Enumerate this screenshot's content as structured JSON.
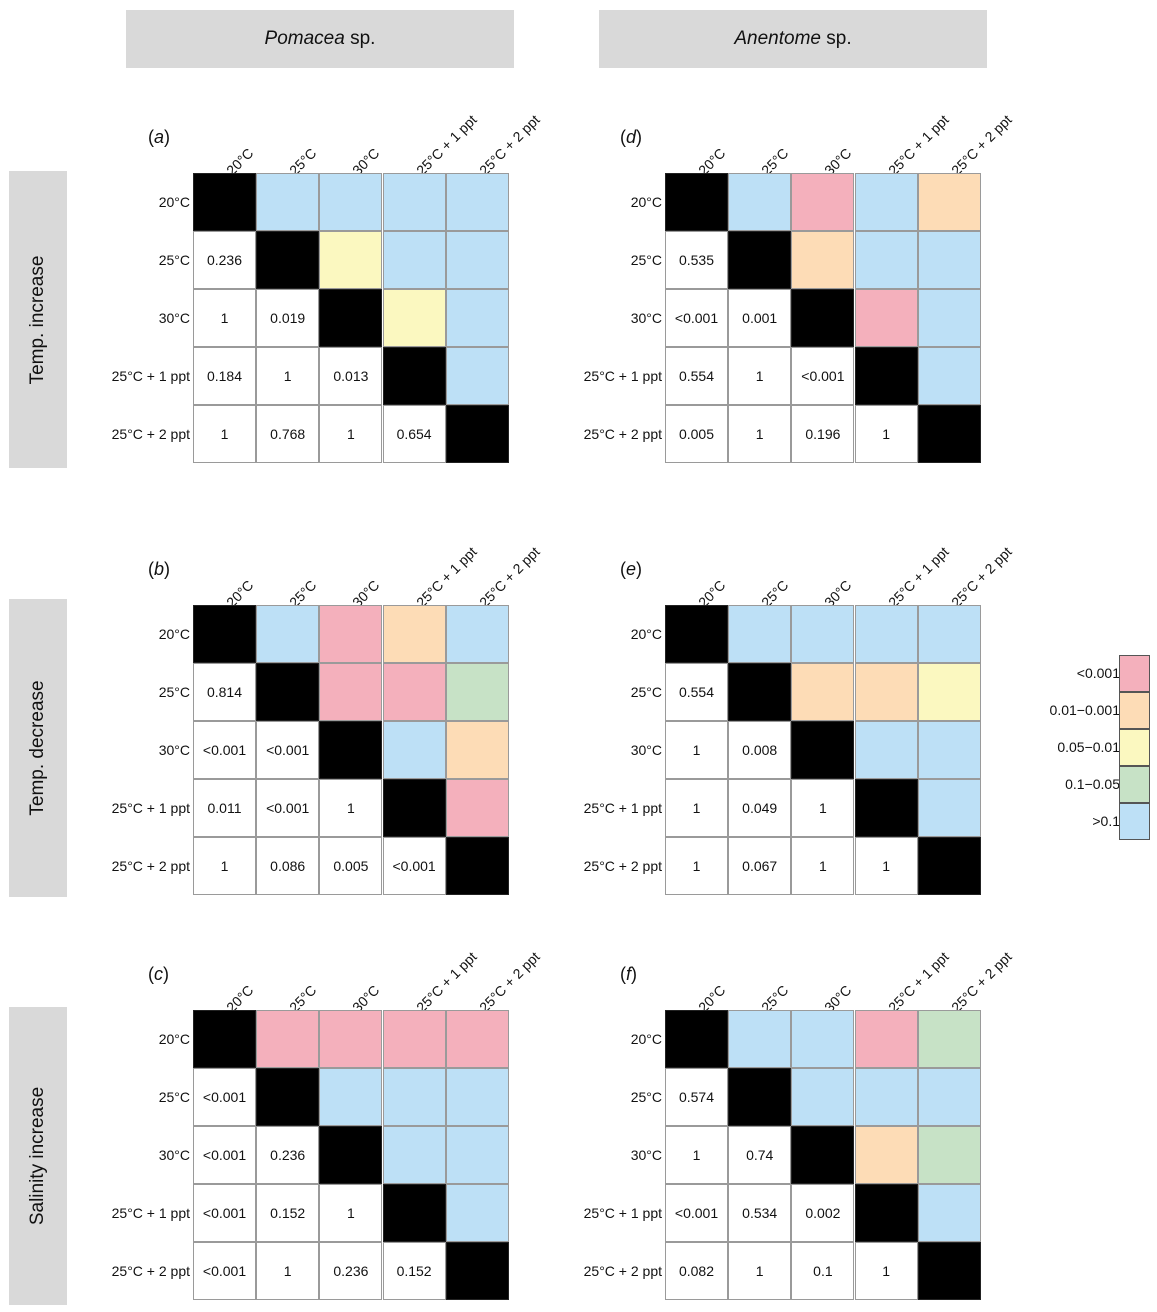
{
  "species_headers": [
    {
      "italic": "Pomacea",
      "suffix": " sp."
    },
    {
      "italic": "Anentome",
      "suffix": " sp."
    }
  ],
  "row_headers": [
    "Temp. increase",
    "Temp. decrease",
    "Salinity increase"
  ],
  "labels": [
    "20°C",
    "25°C",
    "30°C",
    "25°C + 1 ppt",
    "25°C + 2 ppt"
  ],
  "colors": {
    "diag": "#000000",
    "<0.001": "#f4b0bc",
    "0.01−0.001": "#fddcb6",
    "0.05−0.01": "#fbf8c0",
    "0.1−0.05": "#c7e2c6",
    ">0.1": "#bde0f6",
    "none": "#ffffff"
  },
  "legend": [
    {
      "label": "<0.001",
      "key": "<0.001"
    },
    {
      "label": "0.01−0.001",
      "key": "0.01−0.001"
    },
    {
      "label": "0.05−0.01",
      "key": "0.05−0.01"
    },
    {
      "label": "0.1−0.05",
      "key": "0.1−0.05"
    },
    {
      "label": ">0.1",
      "key": ">0.1"
    }
  ],
  "chart_data": [
    {
      "type": "heatmap",
      "panel": "a",
      "species": "Pomacea sp.",
      "treatment": "Temp. increase",
      "categories": [
        "20°C",
        "25°C",
        "30°C",
        "25°C + 1 ppt",
        "25°C + 2 ppt"
      ],
      "lower_values": [
        [
          "0.236"
        ],
        [
          "1",
          "0.019"
        ],
        [
          "0.184",
          "1",
          "0.013"
        ],
        [
          "1",
          "0.768",
          "1",
          "0.654"
        ]
      ],
      "upper_colors": [
        [
          ">0.1",
          ">0.1",
          ">0.1",
          ">0.1"
        ],
        [
          "0.05−0.01",
          ">0.1",
          ">0.1"
        ],
        [
          "0.05−0.01",
          ">0.1"
        ],
        [
          ">0.1"
        ]
      ]
    },
    {
      "type": "heatmap",
      "panel": "b",
      "species": "Pomacea sp.",
      "treatment": "Temp. decrease",
      "categories": [
        "20°C",
        "25°C",
        "30°C",
        "25°C + 1 ppt",
        "25°C + 2 ppt"
      ],
      "lower_values": [
        [
          "0.814"
        ],
        [
          "<0.001",
          "<0.001"
        ],
        [
          "0.011",
          "<0.001",
          "1"
        ],
        [
          "1",
          "0.086",
          "0.005",
          "<0.001"
        ]
      ],
      "upper_colors": [
        [
          ">0.1",
          "<0.001",
          "0.01−0.001",
          ">0.1"
        ],
        [
          "<0.001",
          "<0.001",
          "0.1−0.05"
        ],
        [
          ">0.1",
          "0.01−0.001"
        ],
        [
          "<0.001"
        ]
      ]
    },
    {
      "type": "heatmap",
      "panel": "c",
      "species": "Pomacea sp.",
      "treatment": "Salinity increase",
      "categories": [
        "20°C",
        "25°C",
        "30°C",
        "25°C + 1 ppt",
        "25°C + 2 ppt"
      ],
      "lower_values": [
        [
          "<0.001"
        ],
        [
          "<0.001",
          "0.236"
        ],
        [
          "<0.001",
          "0.152",
          "1"
        ],
        [
          "<0.001",
          "1",
          "0.236",
          "0.152"
        ]
      ],
      "upper_colors": [
        [
          "<0.001",
          "<0.001",
          "<0.001",
          "<0.001"
        ],
        [
          ">0.1",
          ">0.1",
          ">0.1"
        ],
        [
          ">0.1",
          ">0.1"
        ],
        [
          ">0.1"
        ]
      ]
    },
    {
      "type": "heatmap",
      "panel": "d",
      "species": "Anentome sp.",
      "treatment": "Temp. increase",
      "categories": [
        "20°C",
        "25°C",
        "30°C",
        "25°C + 1 ppt",
        "25°C + 2 ppt"
      ],
      "lower_values": [
        [
          "0.535"
        ],
        [
          "<0.001",
          "0.001"
        ],
        [
          "0.554",
          "1",
          "<0.001"
        ],
        [
          "0.005",
          "1",
          "0.196",
          "1"
        ]
      ],
      "upper_colors": [
        [
          ">0.1",
          "<0.001",
          ">0.1",
          "0.01−0.001"
        ],
        [
          "0.01−0.001",
          ">0.1",
          ">0.1"
        ],
        [
          "<0.001",
          ">0.1"
        ],
        [
          ">0.1"
        ]
      ]
    },
    {
      "type": "heatmap",
      "panel": "e",
      "species": "Anentome sp.",
      "treatment": "Temp. decrease",
      "categories": [
        "20°C",
        "25°C",
        "30°C",
        "25°C + 1 ppt",
        "25°C + 2 ppt"
      ],
      "lower_values": [
        [
          "0.554"
        ],
        [
          "1",
          "0.008"
        ],
        [
          "1",
          "0.049",
          "1"
        ],
        [
          "1",
          "0.067",
          "1",
          "1"
        ]
      ],
      "upper_colors": [
        [
          ">0.1",
          ">0.1",
          ">0.1",
          ">0.1"
        ],
        [
          "0.01−0.001",
          "0.01−0.001",
          "0.05−0.01"
        ],
        [
          ">0.1",
          ">0.1"
        ],
        [
          ">0.1"
        ]
      ]
    },
    {
      "type": "heatmap",
      "panel": "f",
      "species": "Anentome sp.",
      "treatment": "Salinity increase",
      "categories": [
        "20°C",
        "25°C",
        "30°C",
        "25°C + 1 ppt",
        "25°C + 2 ppt"
      ],
      "lower_values": [
        [
          "0.574"
        ],
        [
          "1",
          "0.74"
        ],
        [
          "<0.001",
          "0.534",
          "0.002"
        ],
        [
          "0.082",
          "1",
          "0.1",
          "1"
        ]
      ],
      "upper_colors": [
        [
          ">0.1",
          ">0.1",
          "<0.001",
          "0.1−0.05"
        ],
        [
          ">0.1",
          ">0.1",
          ">0.1"
        ],
        [
          "0.01−0.001",
          "0.1−0.05"
        ],
        [
          ">0.1"
        ]
      ]
    }
  ]
}
